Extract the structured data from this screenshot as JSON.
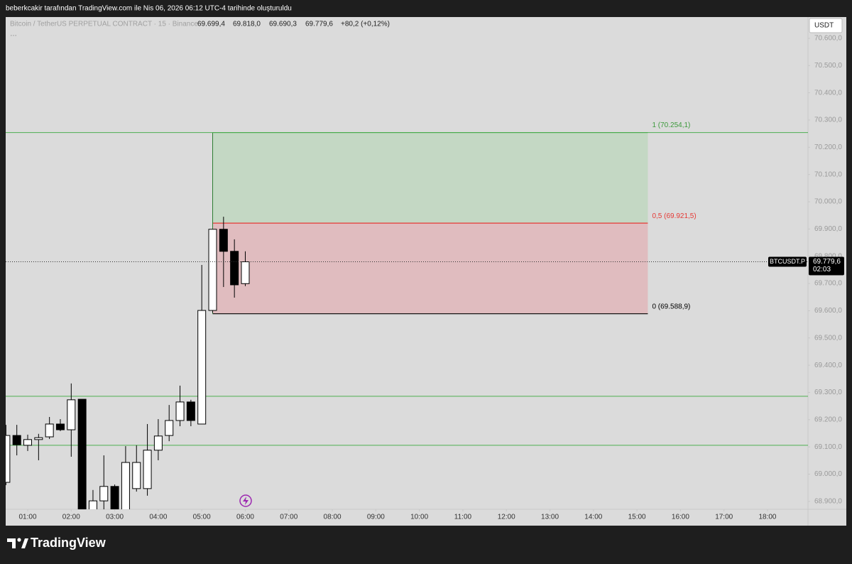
{
  "header": {
    "caption": "beberkcakir tarafından TradingView.com ile Nis 06, 2026 06:12 UTC-4 tarihinde oluşturuldu"
  },
  "chart_data": {
    "type": "candlestick",
    "title": "Bitcoin / TetherUS PERPETUAL CONTRACT · 15 · Binance",
    "legend": {
      "open": "69.699,4",
      "high": "69.818,0",
      "low": "69.690,3",
      "close": "69.779,6",
      "change": "+80,2 (+0,12%)"
    },
    "currency": "USDT",
    "x": [
      0.5,
      0.75,
      1,
      1.25,
      1.5,
      1.75,
      2,
      2.25,
      2.5,
      2.75,
      3,
      3.25,
      3.5,
      3.75,
      4,
      4.25,
      4.5,
      4.75,
      5,
      5.25,
      5.5,
      5.75,
      6
    ],
    "open": [
      68970,
      69142,
      69106,
      69127,
      69137,
      69184,
      69163,
      69275,
      68860,
      68902,
      68955,
      68865,
      68947,
      68947,
      69088,
      69142,
      69197,
      69265,
      69184,
      69601,
      69899,
      69818,
      69699.4
    ],
    "high": [
      69181,
      69181,
      69145,
      69148,
      69210,
      69202,
      69333,
      69275,
      68942,
      69069,
      68962,
      69103,
      69106,
      69184,
      69202,
      69254,
      69325,
      69273,
      69768,
      69899,
      69945,
      69862,
      69818.0
    ],
    "low": [
      68960,
      69069,
      69085,
      69051,
      69129,
      69158,
      69064,
      68850,
      68840,
      68871,
      68860,
      68850,
      68936,
      68921,
      69051,
      69121,
      69176,
      69176,
      69184,
      69593,
      69687,
      69648,
      69690.3
    ],
    "close": [
      69142,
      69108,
      69127,
      69134,
      69184,
      69163,
      69273,
      68860,
      68902,
      68955,
      68865,
      69043,
      69043,
      69088,
      69140,
      69197,
      69265,
      69197,
      69601,
      69899,
      69818,
      69695,
      69779.6
    ],
    "up_color": "#ffffff",
    "down_color": "#000000",
    "xlim": [
      0.494,
      18.93
    ],
    "xticks": [
      {
        "value": 1,
        "label": "01:00"
      },
      {
        "value": 2,
        "label": "02:00"
      },
      {
        "value": 3,
        "label": "03:00"
      },
      {
        "value": 4,
        "label": "04:00"
      },
      {
        "value": 5,
        "label": "05:00"
      },
      {
        "value": 6,
        "label": "06:00"
      },
      {
        "value": 7,
        "label": "07:00"
      },
      {
        "value": 8,
        "label": "08:00"
      },
      {
        "value": 9,
        "label": "09:00"
      },
      {
        "value": 10,
        "label": "10:00"
      },
      {
        "value": 11,
        "label": "11:00"
      },
      {
        "value": 12,
        "label": "12:00"
      },
      {
        "value": 13,
        "label": "13:00"
      },
      {
        "value": 14,
        "label": "14:00"
      },
      {
        "value": 15,
        "label": "15:00"
      },
      {
        "value": 16,
        "label": "16:00"
      },
      {
        "value": 17,
        "label": "17:00"
      },
      {
        "value": 18,
        "label": "18:00"
      }
    ],
    "ylim": [
      68871,
      70678
    ],
    "yticks": [
      {
        "value": 68900,
        "label": "68.900,0"
      },
      {
        "value": 69000,
        "label": "69.000,0"
      },
      {
        "value": 69100,
        "label": "69.100,0"
      },
      {
        "value": 69200,
        "label": "69.200,0"
      },
      {
        "value": 69300,
        "label": "69.300,0"
      },
      {
        "value": 69400,
        "label": "69.400,0"
      },
      {
        "value": 69500,
        "label": "69.500,0"
      },
      {
        "value": 69600,
        "label": "69.600,0"
      },
      {
        "value": 69700,
        "label": "69.700,0"
      },
      {
        "value": 69800,
        "label": "69.800,0"
      },
      {
        "value": 69900,
        "label": "69.900,0"
      },
      {
        "value": 70000,
        "label": "70.000,0"
      },
      {
        "value": 70100,
        "label": "70.100,0"
      },
      {
        "value": 70200,
        "label": "70.200,0"
      },
      {
        "value": 70300,
        "label": "70.300,0"
      },
      {
        "value": 70400,
        "label": "70.400,0"
      },
      {
        "value": 70500,
        "label": "70.500,0"
      },
      {
        "value": 70600,
        "label": "70.600,0"
      }
    ],
    "grid": false,
    "hlines": [
      {
        "value": 70254.1,
        "color": "#4caf50"
      },
      {
        "value": 69286,
        "color": "#4caf50"
      },
      {
        "value": 69106,
        "color": "#4caf50"
      }
    ],
    "fib": {
      "x": [
        5.25,
        15.25
      ],
      "levels": [
        {
          "value": 70254.1,
          "label": "1 (70.254,1)",
          "color": "#3d9a3d"
        },
        {
          "value": 69921.5,
          "label": "0,5 (69.921,5)",
          "color": "#e53935"
        },
        {
          "value": 69588.9,
          "label": "0 (69.588,9)",
          "color": "#000000"
        }
      ],
      "fills": [
        "#c4d8c4",
        "#e0bcbf"
      ]
    },
    "price_tag": {
      "symbol": "BTCUSDT.P",
      "price": "69.779,6",
      "countdown": "02:03"
    }
  },
  "footer": {
    "brand": "TradingView"
  }
}
